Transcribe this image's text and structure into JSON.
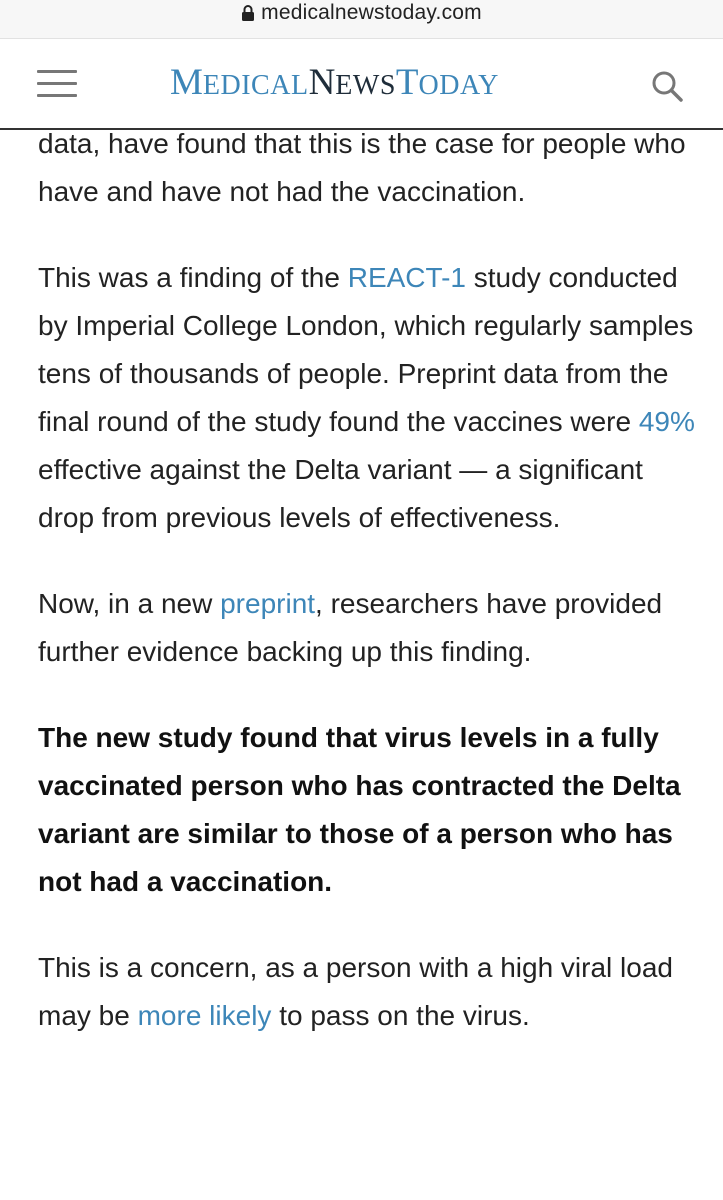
{
  "browser": {
    "url": "medicalnewstoday.com"
  },
  "header": {
    "logo": {
      "medical_first": "M",
      "medical_rest": "edical",
      "news_first": "N",
      "news_rest": "ews",
      "today_first": "T",
      "today_rest": "oday"
    },
    "colors": {
      "brand_blue": "#3d86b8",
      "brand_dark": "#1f2d3a"
    }
  },
  "article": {
    "p1": {
      "text": "data, have found that this is the case for people who have and have not had the vaccination."
    },
    "p2": {
      "t1": "This was a finding of the ",
      "link1": "REACT-1",
      "t2": " study conducted by Imperial College London, which regularly samples tens of thousands of people. Preprint data from the final round of the study found the vaccines were ",
      "link2": "49%",
      "t3": " effective against the Delta variant — a significant drop from previous levels of effectiveness."
    },
    "p3": {
      "t1": "Now, in a new ",
      "link1": "preprint",
      "t2": ", researchers have provided further evidence backing up this finding."
    },
    "p4": {
      "text": "The new study found that virus levels in a fully vaccinated person who has contracted the Delta variant are similar to those of a person who has not had a vaccination."
    },
    "p5": {
      "t1": "This is a concern, as a person with a high viral load may be ",
      "link1": "more likely",
      "t2": " to pass on the virus."
    }
  }
}
